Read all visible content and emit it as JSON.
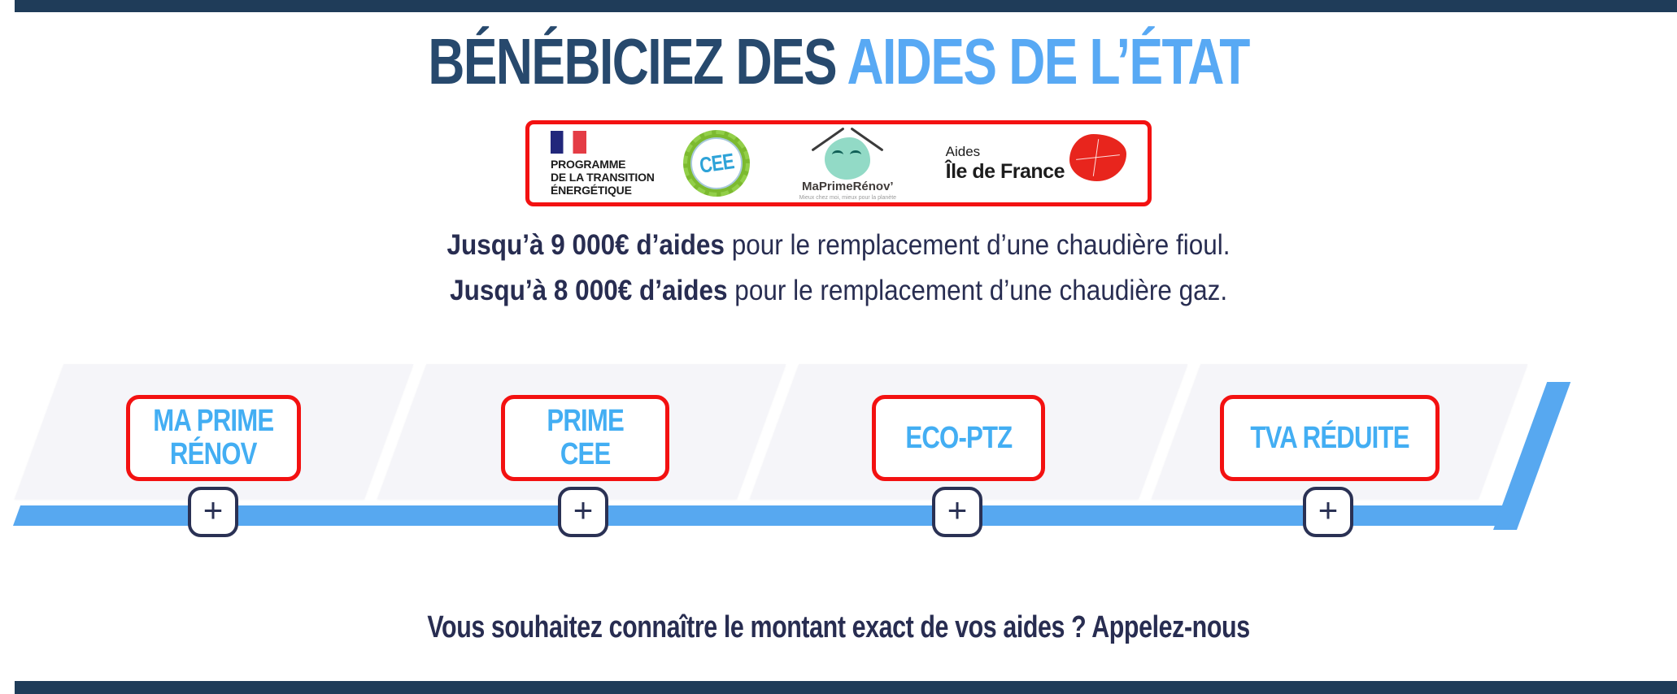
{
  "colors": {
    "navy_bar": "#1f3c59",
    "title_navy": "#27496d",
    "title_blue": "#58a9f4",
    "text_navy": "#282d51",
    "label_blue": "#43aef3",
    "accent_red": "#f31111",
    "bar_blue": "#57a8f0",
    "plus_navy": "#2a3154",
    "segment_gray": "#f5f5f9",
    "cee_green": "#7cba2f",
    "cee_blue": "#2ea3d8",
    "mpr_mint": "#92dac6",
    "idf_red": "#e8251d",
    "flag_blue": "#21277b",
    "flag_red": "#e43c45"
  },
  "header": {
    "title_dark": "BÉNÉBICIEZ DES ",
    "title_accent": "AIDES DE L’ÉTAT"
  },
  "partners": {
    "programme": {
      "line1": "PROGRAMME",
      "line2": "DE LA TRANSITION",
      "line3": "ÉNERGÉTIQUE"
    },
    "cee": {
      "label": "CEE"
    },
    "maprimerenov": {
      "name": "MaPrimeRénov’",
      "tagline": "Mieux chez moi, mieux pour la planète"
    },
    "ile_de_france": {
      "line1": "Aides",
      "line2": "Île de France"
    }
  },
  "intro": {
    "line1_bold": "Jusqu’à 9 000€ d’aides",
    "line1_rest": " pour le remplacement d’une chaudière fioul.",
    "line2_bold": "Jusqu’à 8 000€ d’aides",
    "line2_rest": " pour le remplacement d’une chaudière gaz."
  },
  "aids": [
    {
      "line1": "MA PRIME",
      "line2": "RÉNOV",
      "expand_label": "+"
    },
    {
      "line1": "PRIME",
      "line2": "CEE",
      "expand_label": "+"
    },
    {
      "line1": "ECO-PTZ",
      "line2": "",
      "expand_label": "+"
    },
    {
      "line1": "TVA RÉDUITE",
      "line2": "",
      "expand_label": "+"
    }
  ],
  "cta": {
    "text": "Vous souhaitez connaître le montant exact de vos aides ? Appelez-nous"
  }
}
